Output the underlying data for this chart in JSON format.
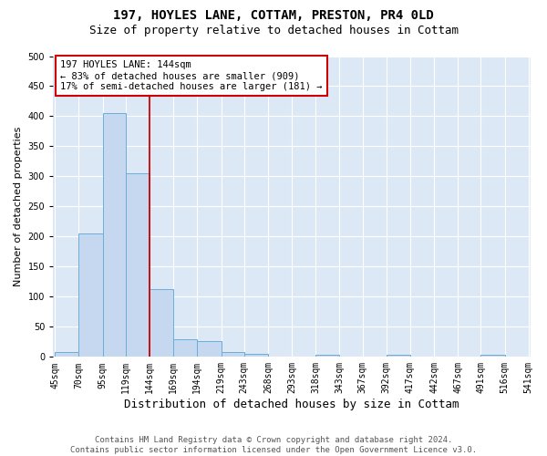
{
  "title1": "197, HOYLES LANE, COTTAM, PRESTON, PR4 0LD",
  "title2": "Size of property relative to detached houses in Cottam",
  "xlabel": "Distribution of detached houses by size in Cottam",
  "ylabel": "Number of detached properties",
  "bin_edges": [
    45,
    70,
    95,
    119,
    144,
    169,
    194,
    219,
    243,
    268,
    293,
    318,
    343,
    367,
    392,
    417,
    442,
    467,
    491,
    516,
    541
  ],
  "bar_heights": [
    8,
    205,
    405,
    305,
    113,
    30,
    27,
    8,
    5,
    0,
    0,
    4,
    0,
    0,
    4,
    0,
    0,
    0,
    4,
    0
  ],
  "bar_color": "#c5d8ef",
  "bar_edge_color": "#6aaed6",
  "red_line_x": 144,
  "red_line_color": "#cc0000",
  "annotation_line1": "197 HOYLES LANE: 144sqm",
  "annotation_line2": "← 83% of detached houses are smaller (909)",
  "annotation_line3": "17% of semi-detached houses are larger (181) →",
  "annotation_box_color": "#ffffff",
  "annotation_box_edge_color": "#cc0000",
  "ylim": [
    0,
    500
  ],
  "yticks": [
    0,
    50,
    100,
    150,
    200,
    250,
    300,
    350,
    400,
    450,
    500
  ],
  "bg_color": "#dce8f5",
  "grid_color": "#ffffff",
  "footer_text": "Contains HM Land Registry data © Crown copyright and database right 2024.\nContains public sector information licensed under the Open Government Licence v3.0.",
  "title1_fontsize": 10,
  "title2_fontsize": 9,
  "xlabel_fontsize": 9,
  "ylabel_fontsize": 8,
  "tick_fontsize": 7,
  "annotation_fontsize": 7.5,
  "footer_fontsize": 6.5
}
